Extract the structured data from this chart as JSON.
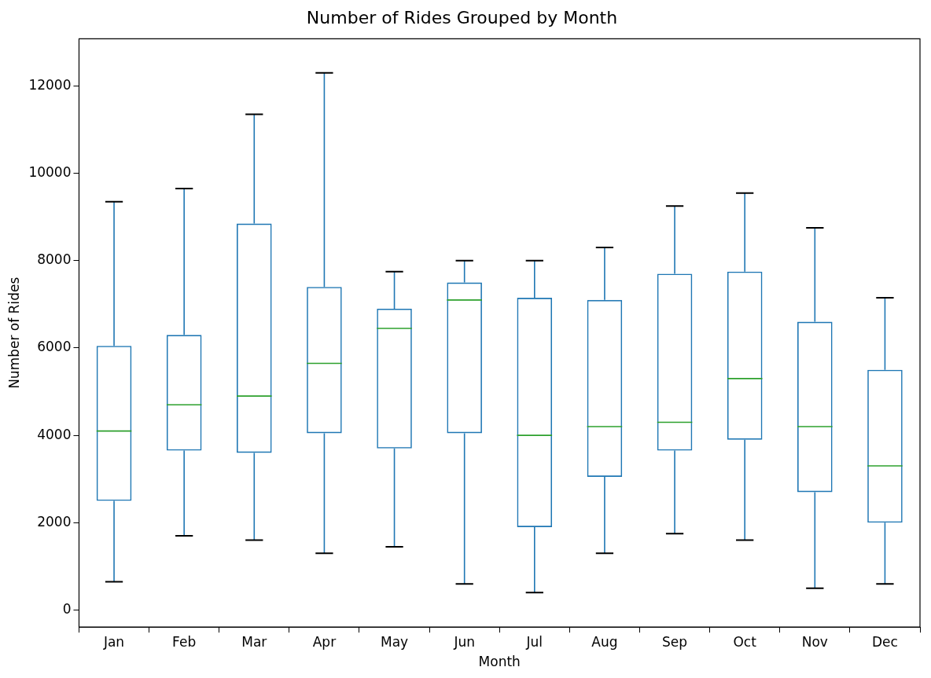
{
  "chart_data": {
    "type": "box",
    "title": "Number of Rides Grouped by Month",
    "xlabel": "Month",
    "ylabel": "Number of Rides",
    "categories": [
      "Jan",
      "Feb",
      "Mar",
      "Apr",
      "May",
      "Jun",
      "Jul",
      "Aug",
      "Sep",
      "Oct",
      "Nov",
      "Dec"
    ],
    "series": [
      {
        "color": "#1f77b4",
        "boxes": [
          {
            "low": 650,
            "q1": 2500,
            "median": 4100,
            "q3": 6050,
            "high": 9350
          },
          {
            "low": 1700,
            "q1": 3650,
            "median": 4700,
            "q3": 6300,
            "high": 9650
          },
          {
            "low": 1600,
            "q1": 3600,
            "median": 4900,
            "q3": 8850,
            "high": 11350
          },
          {
            "low": 1300,
            "q1": 4050,
            "median": 5650,
            "q3": 7400,
            "high": 12300
          },
          {
            "low": 1450,
            "q1": 3700,
            "median": 6450,
            "q3": 6900,
            "high": 7750
          },
          {
            "low": 600,
            "q1": 4050,
            "median": 7100,
            "q3": 7500,
            "high": 8000
          },
          {
            "low": 400,
            "q1": 1900,
            "median": 4000,
            "q3": 7150,
            "high": 8000
          },
          {
            "low": 1300,
            "q1": 3050,
            "median": 4200,
            "q3": 7100,
            "high": 8300
          },
          {
            "low": 1750,
            "q1": 3650,
            "median": 4300,
            "q3": 7700,
            "high": 9250
          },
          {
            "low": 1600,
            "q1": 3900,
            "median": 5300,
            "q3": 7750,
            "high": 9550
          },
          {
            "low": 500,
            "q1": 2700,
            "median": 4200,
            "q3": 6600,
            "high": 8750
          },
          {
            "low": 600,
            "q1": 2000,
            "median": 3300,
            "q3": 5500,
            "high": 7150
          }
        ]
      }
    ],
    "ylim": [
      -390,
      13080
    ],
    "yticks": [
      0,
      2000,
      4000,
      6000,
      8000,
      10000,
      12000
    ],
    "grid": false,
    "legend": false
  }
}
